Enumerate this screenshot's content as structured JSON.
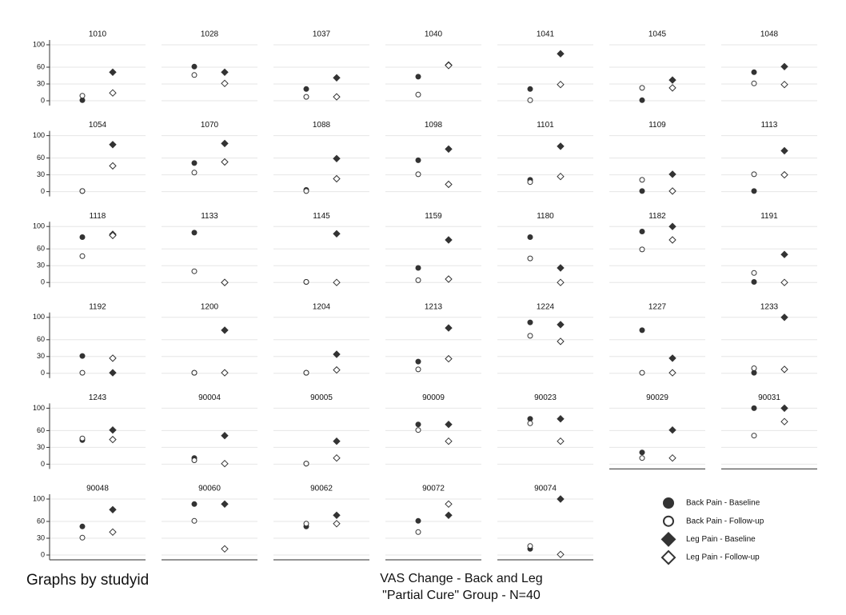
{
  "chart_data": {
    "type": "scatter",
    "title": "VAS Change - Back and Leg",
    "subtitle": "\"Partial Cure\" Group - N=40",
    "note": "Graphs by studyid",
    "ylim": [
      0,
      100
    ],
    "yticks": [
      0,
      30,
      60,
      100
    ],
    "grid": true,
    "columns": 7,
    "series": [
      {
        "name": "Back Pain - Baseline",
        "marker": "circle",
        "filled": true,
        "color": "#333333"
      },
      {
        "name": "Back Pain - Follow-up",
        "marker": "circle",
        "filled": false,
        "color": "#333333"
      },
      {
        "name": "Leg Pain - Baseline",
        "marker": "diamond",
        "filled": true,
        "color": "#333333"
      },
      {
        "name": "Leg Pain - Follow-up",
        "marker": "diamond",
        "filled": false,
        "color": "#333333"
      }
    ],
    "panels": [
      {
        "title": "1010",
        "values": [
          1,
          9,
          51,
          14
        ]
      },
      {
        "title": "1028",
        "values": [
          61,
          46,
          51,
          31
        ]
      },
      {
        "title": "1037",
        "values": [
          21,
          7,
          41,
          7
        ]
      },
      {
        "title": "1040",
        "values": [
          43,
          11,
          64,
          63
        ]
      },
      {
        "title": "1041",
        "values": [
          21,
          1,
          84,
          29
        ]
      },
      {
        "title": "1045",
        "values": [
          1,
          23,
          37,
          23
        ]
      },
      {
        "title": "1048",
        "values": [
          51,
          31,
          61,
          29
        ]
      },
      {
        "title": "1054",
        "values": [
          1,
          1,
          84,
          46
        ]
      },
      {
        "title": "1070",
        "values": [
          51,
          34,
          86,
          53
        ]
      },
      {
        "title": "1088",
        "values": [
          3,
          1,
          59,
          23
        ]
      },
      {
        "title": "1098",
        "values": [
          56,
          31,
          76,
          13
        ]
      },
      {
        "title": "1101",
        "values": [
          21,
          17,
          81,
          27
        ]
      },
      {
        "title": "1109",
        "values": [
          1,
          21,
          31,
          1
        ]
      },
      {
        "title": "1113",
        "values": [
          1,
          31,
          73,
          30
        ]
      },
      {
        "title": "1118",
        "values": [
          81,
          47,
          86,
          84
        ]
      },
      {
        "title": "1133",
        "values": [
          89,
          20,
          0,
          0
        ]
      },
      {
        "title": "1145",
        "values": [
          1,
          1,
          87,
          0
        ]
      },
      {
        "title": "1159",
        "values": [
          26,
          4,
          76,
          6
        ]
      },
      {
        "title": "1180",
        "values": [
          81,
          43,
          26,
          0
        ]
      },
      {
        "title": "1182",
        "values": [
          91,
          59,
          100,
          76
        ]
      },
      {
        "title": "1191",
        "values": [
          1,
          17,
          50,
          0
        ]
      },
      {
        "title": "1192",
        "values": [
          31,
          1,
          1,
          27
        ]
      },
      {
        "title": "1200",
        "values": [
          1,
          1,
          77,
          1
        ]
      },
      {
        "title": "1204",
        "values": [
          1,
          1,
          34,
          6
        ]
      },
      {
        "title": "1213",
        "values": [
          21,
          7,
          81,
          26
        ]
      },
      {
        "title": "1224",
        "values": [
          91,
          67,
          87,
          57
        ]
      },
      {
        "title": "1227",
        "values": [
          77,
          1,
          27,
          1
        ]
      },
      {
        "title": "1233",
        "values": [
          1,
          9,
          100,
          7
        ]
      },
      {
        "title": "1243",
        "values": [
          43,
          46,
          61,
          44
        ]
      },
      {
        "title": "90004",
        "values": [
          11,
          7,
          51,
          1
        ]
      },
      {
        "title": "90005",
        "values": [
          1,
          1,
          41,
          11
        ]
      },
      {
        "title": "90009",
        "values": [
          71,
          61,
          71,
          41
        ]
      },
      {
        "title": "90023",
        "values": [
          81,
          73,
          81,
          41
        ]
      },
      {
        "title": "90029",
        "values": [
          21,
          11,
          61,
          11
        ]
      },
      {
        "title": "90031",
        "values": [
          100,
          51,
          100,
          76
        ]
      },
      {
        "title": "90048",
        "values": [
          51,
          31,
          81,
          41
        ]
      },
      {
        "title": "90060",
        "values": [
          91,
          61,
          91,
          11
        ]
      },
      {
        "title": "90062",
        "values": [
          51,
          56,
          71,
          56
        ]
      },
      {
        "title": "90072",
        "values": [
          61,
          41,
          71,
          91
        ]
      },
      {
        "title": "90074",
        "values": [
          11,
          16,
          100,
          1
        ]
      }
    ]
  }
}
